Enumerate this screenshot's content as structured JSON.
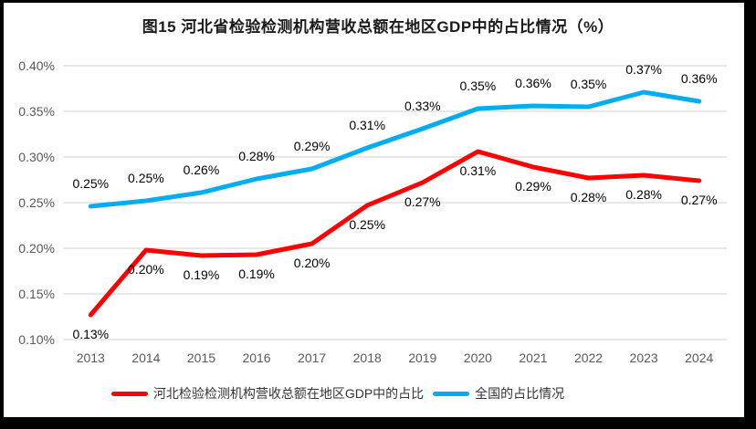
{
  "title": "图15 河北省检验检测机构营收总额在地区GDP中的占比情况（%）",
  "chart_data": {
    "type": "line",
    "x": [
      "2013",
      "2014",
      "2015",
      "2016",
      "2017",
      "2018",
      "2019",
      "2020",
      "2021",
      "2022",
      "2023",
      "2024"
    ],
    "series": [
      {
        "name": "河北检验检测机构营收总额在地区GDP中的占比",
        "color": "#FF0000",
        "label_side": "below",
        "values": [
          0.127,
          0.198,
          0.192,
          0.193,
          0.205,
          0.247,
          0.272,
          0.306,
          0.289,
          0.277,
          0.28,
          0.274
        ],
        "labels": [
          "0.13%",
          "0.20%",
          "0.19%",
          "0.19%",
          "0.20%",
          "0.25%",
          "0.27%",
          "0.31%",
          "0.29%",
          "0.28%",
          "0.28%",
          "0.27%"
        ]
      },
      {
        "name": "全国的占比情况",
        "color": "#00AEEF",
        "label_side": "above",
        "values": [
          0.246,
          0.252,
          0.261,
          0.276,
          0.287,
          0.31,
          0.331,
          0.353,
          0.356,
          0.355,
          0.371,
          0.361
        ],
        "labels": [
          "0.25%",
          "0.25%",
          "0.26%",
          "0.28%",
          "0.29%",
          "0.31%",
          "0.33%",
          "0.35%",
          "0.36%",
          "0.35%",
          "0.37%",
          "0.36%"
        ]
      }
    ],
    "ylim": [
      0.1,
      0.4
    ],
    "yticks": [
      {
        "value": 0.4,
        "label": "0.40%"
      },
      {
        "value": 0.35,
        "label": "0.35%"
      },
      {
        "value": 0.3,
        "label": "0.30%"
      },
      {
        "value": 0.25,
        "label": "0.25%"
      },
      {
        "value": 0.2,
        "label": "0.20%"
      },
      {
        "value": 0.15,
        "label": "0.15%"
      },
      {
        "value": 0.1,
        "label": "0.10%"
      }
    ],
    "grid": true,
    "legend_position": "bottom",
    "colors": {
      "gridline": "#D9D9D9",
      "axis_text": "#595959",
      "data_label_text": "#000000",
      "title_text": "#1a1a1a",
      "frame": "#000000",
      "background": "#ffffff"
    }
  }
}
